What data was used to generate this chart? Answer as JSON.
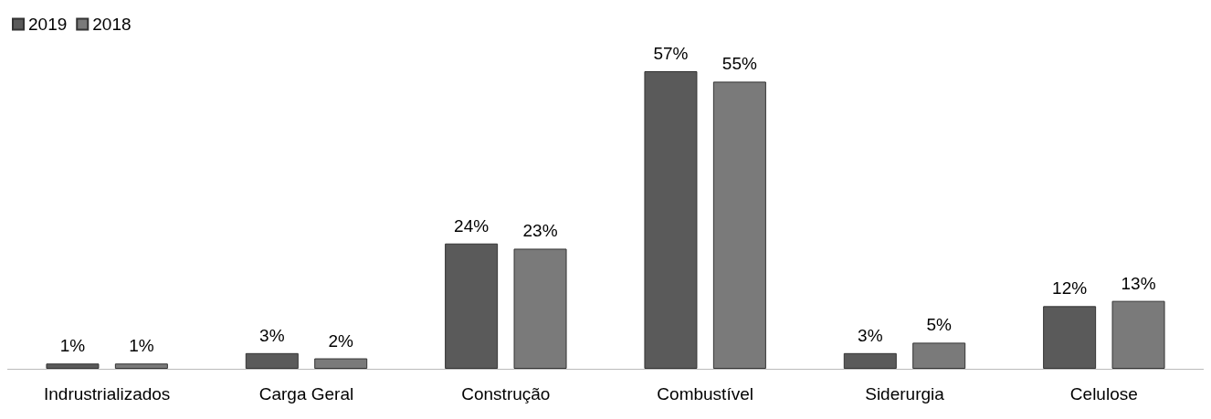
{
  "chart_data": {
    "type": "bar",
    "categories": [
      "Indrustrializados",
      "Carga Geral",
      "Construção",
      "Combustível",
      "Siderurgia",
      "Celulose"
    ],
    "series": [
      {
        "name": "2019",
        "color": "#5a5a5a",
        "values": [
          1,
          3,
          24,
          57,
          3,
          12
        ],
        "value_labels": [
          "1%",
          "3%",
          "24%",
          "57%",
          "3%",
          "12%"
        ]
      },
      {
        "name": "2018",
        "color": "#7a7a7a",
        "values": [
          1,
          2,
          23,
          55,
          5,
          13
        ],
        "value_labels": [
          "1%",
          "2%",
          "23%",
          "55%",
          "5%",
          "13%"
        ]
      }
    ],
    "legend": "top left",
    "grid": false
  }
}
